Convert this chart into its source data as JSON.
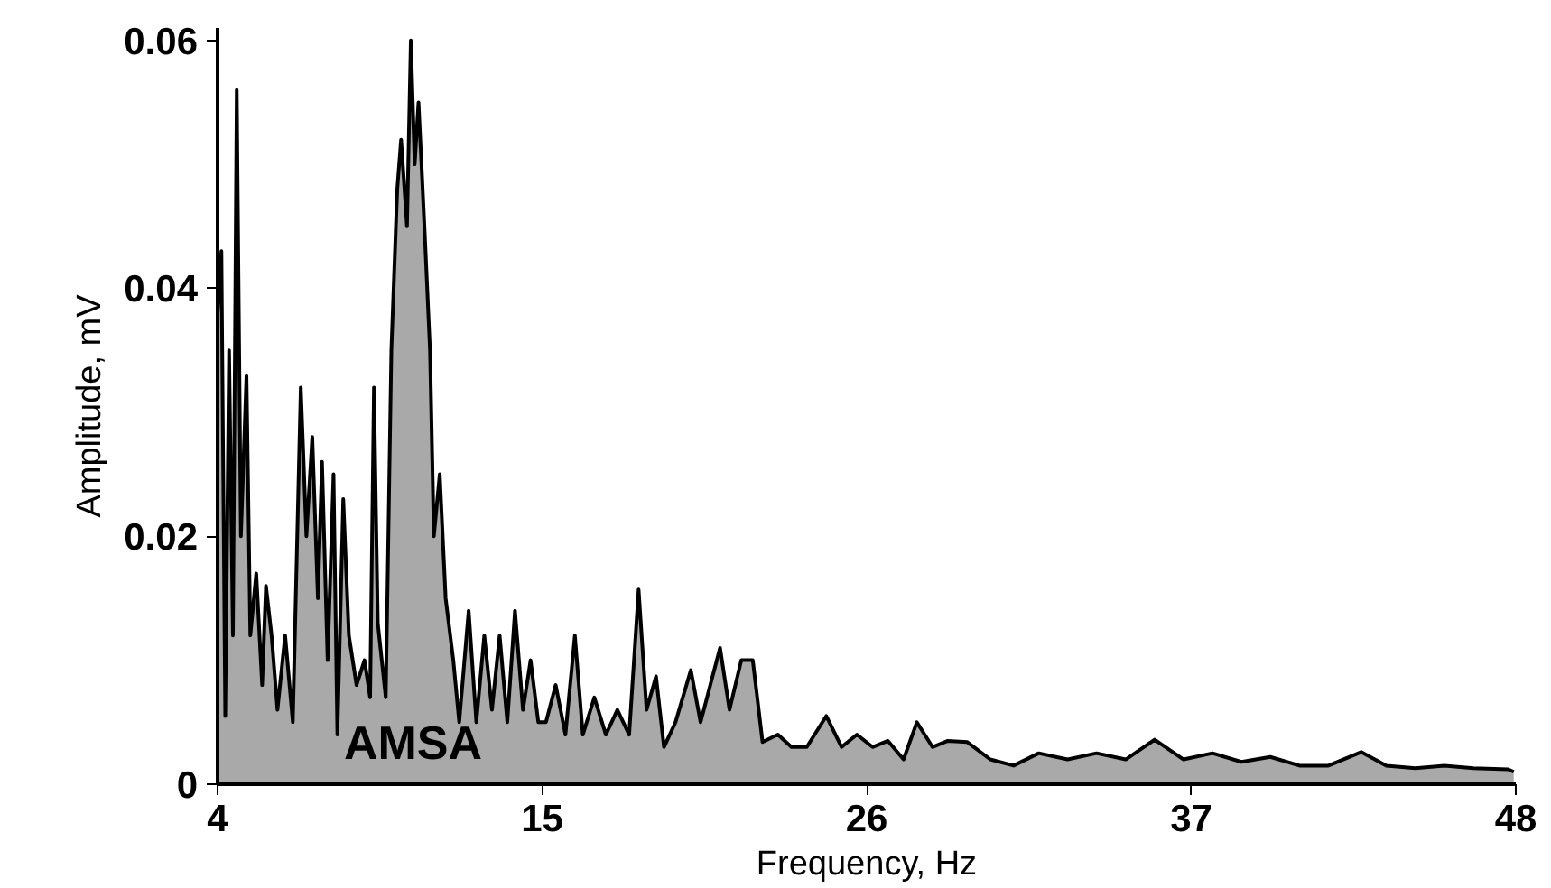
{
  "chart_data": {
    "type": "area",
    "xlabel": "Frequency, Hz",
    "ylabel": "Amplitude, mV",
    "annotations": [
      "AMSA"
    ],
    "xlim": [
      4,
      48
    ],
    "xticks": [
      4,
      15,
      26,
      37,
      48
    ],
    "ylim": [
      0,
      0.061
    ],
    "yticks": [
      {
        "value": 0,
        "label": "0"
      },
      0.02,
      0.04,
      0.06
    ],
    "grid": false,
    "series": [
      {
        "color": "#a9a9a9",
        "x": [
          4.0,
          4.13,
          4.26,
          4.39,
          4.52,
          4.65,
          4.79,
          4.98,
          5.11,
          5.31,
          5.51,
          5.64,
          5.83,
          6.03,
          6.29,
          6.55,
          6.82,
          7.01,
          7.21,
          7.4,
          7.54,
          7.73,
          7.93,
          8.06,
          8.26,
          8.45,
          8.71,
          8.98,
          9.17,
          9.3,
          9.43,
          9.7,
          9.89,
          10.09,
          10.22,
          10.42,
          10.55,
          10.68,
          10.81,
          11.01,
          11.2,
          11.33,
          11.53,
          11.73,
          11.99,
          12.19,
          12.51,
          12.77,
          13.04,
          13.3,
          13.56,
          13.82,
          14.08,
          14.35,
          14.61,
          14.87,
          15.13,
          15.46,
          15.79,
          16.11,
          16.38,
          16.77,
          17.16,
          17.55,
          17.95,
          18.27,
          18.54,
          18.86,
          19.13,
          19.52,
          20.04,
          20.37,
          20.7,
          21.03,
          21.35,
          21.75,
          22.14,
          22.47,
          22.99,
          23.45,
          23.97,
          24.63,
          25.15,
          25.67,
          26.2,
          26.72,
          27.25,
          27.7,
          28.23,
          28.75,
          29.41,
          30.19,
          30.98,
          31.83,
          32.81,
          33.79,
          34.78,
          35.76,
          36.74,
          37.72,
          38.7,
          39.68,
          40.67,
          41.65,
          42.76,
          43.61,
          44.6,
          45.58,
          46.56,
          47.74,
          47.93
        ],
        "values": [
          0.038,
          0.043,
          0.0055,
          0.035,
          0.012,
          0.056,
          0.02,
          0.033,
          0.012,
          0.017,
          0.008,
          0.016,
          0.012,
          0.006,
          0.012,
          0.005,
          0.032,
          0.02,
          0.028,
          0.015,
          0.026,
          0.01,
          0.025,
          0.004,
          0.023,
          0.012,
          0.008,
          0.01,
          0.007,
          0.032,
          0.013,
          0.007,
          0.035,
          0.048,
          0.052,
          0.045,
          0.06,
          0.05,
          0.055,
          0.045,
          0.035,
          0.02,
          0.025,
          0.015,
          0.01,
          0.005,
          0.014,
          0.005,
          0.012,
          0.006,
          0.012,
          0.005,
          0.014,
          0.006,
          0.01,
          0.005,
          0.005,
          0.008,
          0.004,
          0.012,
          0.004,
          0.007,
          0.004,
          0.006,
          0.004,
          0.0157,
          0.006,
          0.0087,
          0.003,
          0.005,
          0.0092,
          0.005,
          0.008,
          0.011,
          0.006,
          0.01,
          0.01,
          0.0034,
          0.004,
          0.003,
          0.003,
          0.0055,
          0.003,
          0.004,
          0.003,
          0.0035,
          0.002,
          0.005,
          0.003,
          0.0035,
          0.0034,
          0.002,
          0.0015,
          0.0025,
          0.002,
          0.0025,
          0.002,
          0.0036,
          0.002,
          0.0025,
          0.0018,
          0.0022,
          0.0015,
          0.0015,
          0.0026,
          0.0015,
          0.0013,
          0.0015,
          0.0013,
          0.0012,
          0.001
        ]
      }
    ]
  }
}
